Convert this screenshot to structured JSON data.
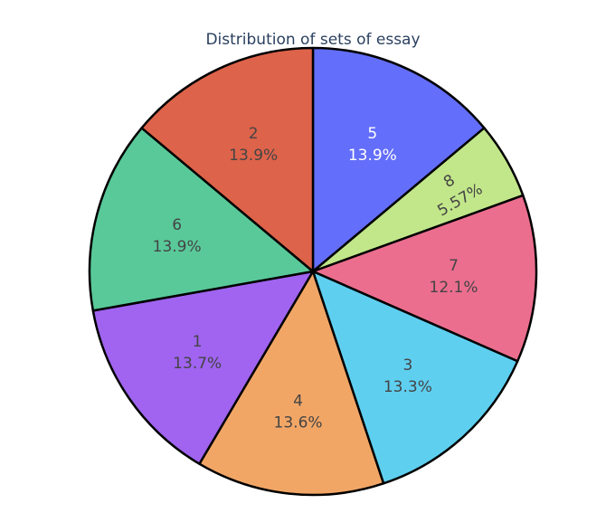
{
  "chart_data": {
    "type": "pie",
    "title": "Distribution of sets of essay",
    "labels": [
      "5",
      "8",
      "7",
      "3",
      "4",
      "1",
      "6",
      "2"
    ],
    "percent_text": [
      "13.9%",
      "5.57%",
      "12.1%",
      "13.3%",
      "13.6%",
      "13.7%",
      "13.9%",
      "13.9%"
    ],
    "values": [
      13.9,
      5.57,
      12.1,
      13.3,
      13.6,
      13.7,
      13.9,
      13.9
    ],
    "colors": [
      "#636efa",
      "#c2e78a",
      "#ec6e8f",
      "#5fcff0",
      "#f2a666",
      "#a064f0",
      "#59c99a",
      "#dd634a"
    ],
    "text_colors": [
      "#ffffff",
      "#444444",
      "#444444",
      "#444444",
      "#444444",
      "#444444",
      "#444444",
      "#444444"
    ],
    "direction": "clockwise",
    "start_angle": "12 o'clock",
    "slice_border_color": "#000000"
  }
}
